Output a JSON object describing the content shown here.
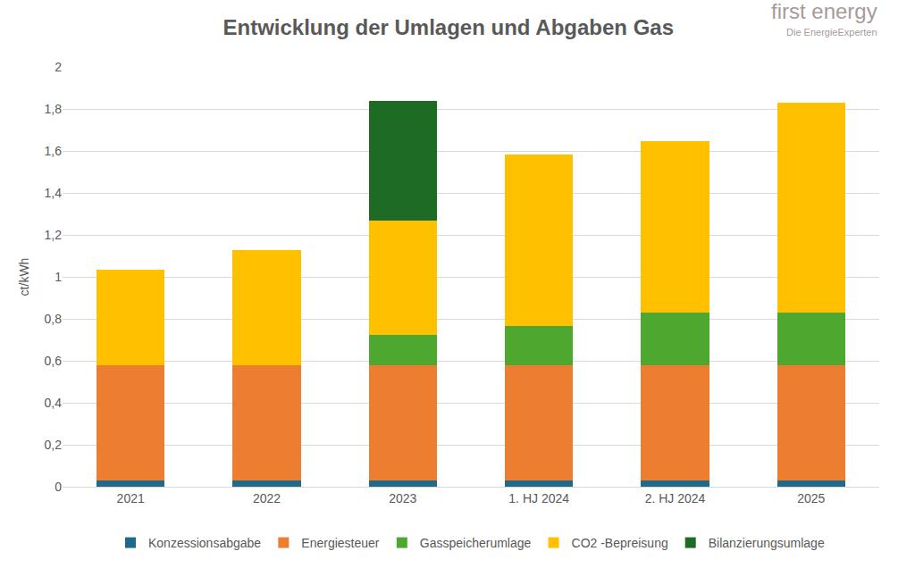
{
  "chart_data": {
    "type": "bar",
    "title": "Entwicklung der Umlagen und Abgaben Gas",
    "annotations": [
      "first energy",
      "Die EnergieExperten"
    ],
    "y_label": "ct/kWh",
    "categories": [
      "2021",
      "2022",
      "2023",
      "1. HJ 2024",
      "2. HJ 2024",
      "2025"
    ],
    "series": [
      {
        "name": "Konzessionsabgabe",
        "color": "#1F6A8A",
        "values": [
          0.03,
          0.03,
          0.03,
          0.03,
          0.03,
          0.03
        ]
      },
      {
        "name": "Energiesteuer",
        "color": "#ED7D31",
        "values": [
          0.55,
          0.55,
          0.55,
          0.55,
          0.55,
          0.55
        ]
      },
      {
        "name": "Gasspeicherumlage",
        "color": "#4EA72E",
        "values": [
          null,
          null,
          0.145,
          0.186,
          0.25,
          0.25
        ]
      },
      {
        "name": "CO2 -Bepreisung",
        "color": "#FFC000",
        "values": [
          0.455,
          0.546,
          0.545,
          0.818,
          0.818,
          1.0
        ]
      },
      {
        "name": "Bilanzierungsumlage",
        "color": "#1E6B24",
        "values": [
          null,
          null,
          0.57,
          null,
          null,
          null
        ]
      }
    ],
    "stacked": true,
    "ylim": [
      0,
      2
    ],
    "yticks": [
      0,
      {
        "value": 0.2,
        "label": "0,2"
      },
      {
        "value": 0.4,
        "label": "0,4"
      },
      {
        "value": 0.6,
        "label": "0,6"
      },
      {
        "value": 0.8,
        "label": "0,8"
      },
      1,
      {
        "value": 1.2,
        "label": "1,2"
      },
      {
        "value": 1.4,
        "label": "1,4"
      },
      {
        "value": 1.6,
        "label": "1,6"
      },
      {
        "value": 1.8,
        "label": "1,8"
      },
      2
    ],
    "grid": true,
    "legend": "bottom"
  }
}
